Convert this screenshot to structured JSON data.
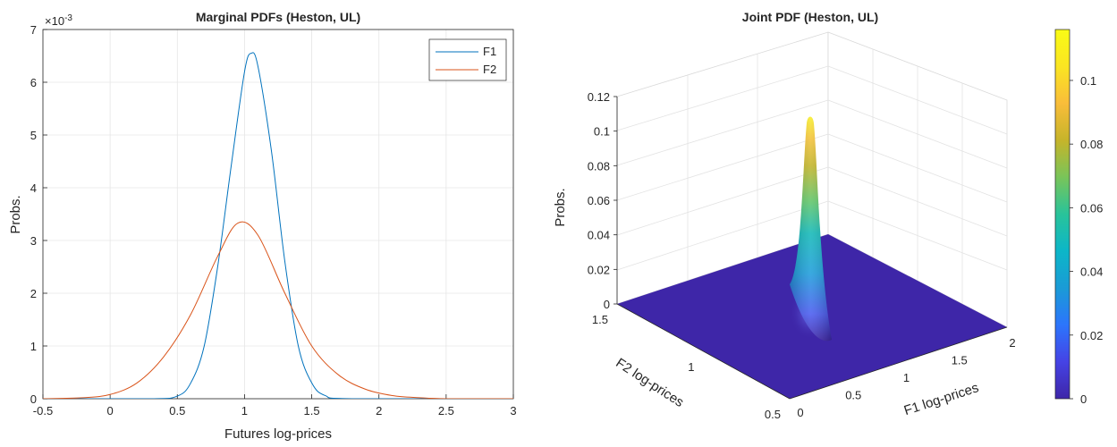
{
  "chart_data": [
    {
      "type": "line",
      "title": "Marginal PDFs (Heston, UL)",
      "xlabel": "Futures log-prices",
      "ylabel": "Probs.",
      "y_exponent_label": "×10",
      "y_exponent": "-3",
      "xlim": [
        -0.5,
        3
      ],
      "ylim": [
        0,
        7
      ],
      "xticks": [
        "-0.5",
        "0",
        "0.5",
        "1",
        "1.5",
        "2",
        "2.5",
        "3"
      ],
      "yticks": [
        "0",
        "1",
        "2",
        "3",
        "4",
        "5",
        "6",
        "7"
      ],
      "grid": true,
      "legend_position": "top-right",
      "series": [
        {
          "name": "F1",
          "color": "#0072BD",
          "x": [
            -0.5,
            0.3,
            0.5,
            0.6,
            0.7,
            0.8,
            0.9,
            1.0,
            1.05,
            1.1,
            1.2,
            1.3,
            1.4,
            1.5,
            1.6,
            1.8,
            3.0
          ],
          "y": [
            0,
            0,
            0.05,
            0.3,
            1.0,
            2.5,
            4.4,
            6.2,
            6.55,
            6.3,
            4.7,
            2.6,
            1.0,
            0.3,
            0.06,
            0,
            0
          ]
        },
        {
          "name": "F2",
          "color": "#D95319",
          "x": [
            -0.5,
            -0.2,
            0.0,
            0.2,
            0.4,
            0.6,
            0.8,
            0.95,
            1.1,
            1.3,
            1.5,
            1.7,
            1.9,
            2.1,
            2.3,
            2.5,
            3.0
          ],
          "y": [
            0,
            0.02,
            0.08,
            0.3,
            0.8,
            1.6,
            2.7,
            3.33,
            3.1,
            2.0,
            1.0,
            0.45,
            0.18,
            0.06,
            0.02,
            0,
            0
          ]
        }
      ]
    },
    {
      "type": "surface",
      "title": "Joint PDF (Heston, UL)",
      "xlabel": "F1 log-prices",
      "ylabel": "F2 log-prices",
      "zlabel": "Probs.",
      "xticks": [
        "0",
        "0.5",
        "1",
        "1.5",
        "2"
      ],
      "yticks": [
        "1.5",
        "1",
        "0.5"
      ],
      "zticks": [
        "0",
        "0.02",
        "0.04",
        "0.06",
        "0.08",
        "0.1",
        "0.12"
      ],
      "zlim": [
        0,
        0.12
      ],
      "peak": {
        "x": 1.0,
        "y": 1.0,
        "z": 0.116
      },
      "colorbar_ticks": [
        "0",
        "0.02",
        "0.04",
        "0.06",
        "0.08",
        "0.1"
      ],
      "colorbar_range": [
        0,
        0.116
      ],
      "colormap": [
        "#3e26a8",
        "#4543e5",
        "#2c75fc",
        "#1a9bd6",
        "#0cb6c8",
        "#29c39a",
        "#79c459",
        "#c6b42a",
        "#f9bd3a",
        "#fae522",
        "#f9fb15"
      ]
    }
  ]
}
